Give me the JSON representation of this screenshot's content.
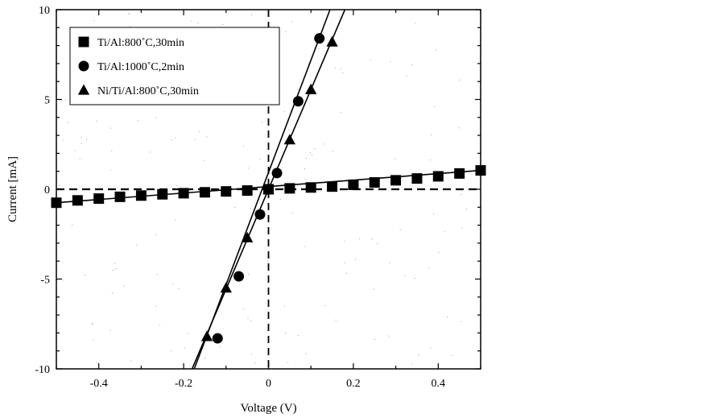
{
  "chart_data": {
    "type": "line",
    "title": "",
    "xlabel": "Voltage (V)",
    "ylabel": "Current [mA]",
    "xlim": [
      -0.5,
      0.5
    ],
    "ylim": [
      -10,
      10
    ],
    "x_ticks": [
      -0.4,
      -0.2,
      0,
      0.2,
      0.4
    ],
    "x_tick_labels": [
      "-0.4",
      "-0.2",
      "0",
      "0.2",
      "0.4"
    ],
    "y_ticks": [
      -10,
      -5,
      0,
      5,
      10
    ],
    "y_tick_labels": [
      "-10",
      "-5",
      "0",
      "5",
      "10"
    ],
    "grid": false,
    "legend_position": "top-left",
    "series": [
      {
        "name": "Ti/Al:800˚C,30min",
        "marker": "square",
        "x": [
          -0.5,
          -0.45,
          -0.4,
          -0.35,
          -0.3,
          -0.25,
          -0.2,
          -0.15,
          -0.1,
          -0.05,
          0,
          0.05,
          0.1,
          0.15,
          0.2,
          0.25,
          0.3,
          0.35,
          0.4,
          0.45,
          0.5
        ],
        "y": [
          -0.75,
          -0.62,
          -0.52,
          -0.42,
          -0.35,
          -0.28,
          -0.22,
          -0.17,
          -0.12,
          -0.07,
          0,
          0.05,
          0.1,
          0.15,
          0.25,
          0.38,
          0.5,
          0.6,
          0.72,
          0.88,
          1.05
        ]
      },
      {
        "name": "Ti/Al:1000˚C,2min",
        "marker": "circle",
        "x": [
          -0.12,
          -0.07,
          -0.02,
          0.02,
          0.07,
          0.12
        ],
        "y": [
          -8.3,
          -4.85,
          -1.4,
          0.9,
          4.9,
          8.4
        ]
      },
      {
        "name": "Ni/Ti/Al:800˚C,30min",
        "marker": "triangle",
        "x": [
          -0.145,
          -0.1,
          -0.05,
          0,
          0.05,
          0.1,
          0.15
        ],
        "y": [
          -8.2,
          -5.5,
          -2.7,
          0,
          2.75,
          5.55,
          8.2
        ]
      }
    ],
    "fit_lines": [
      {
        "series": "Ti/Al:800˚C,30min",
        "x": [
          -0.5,
          0.5
        ],
        "y": [
          -0.75,
          1.05
        ]
      },
      {
        "series": "Ti/Al:1000˚C,2min",
        "x": [
          -0.175,
          0.145
        ],
        "y": [
          -10,
          10
        ]
      },
      {
        "series": "Ni/Ti/Al:800˚C,30min",
        "x": [
          -0.18,
          0.18
        ],
        "y": [
          -10,
          10
        ]
      }
    ],
    "reference_lines": [
      {
        "orientation": "horizontal",
        "value": 0,
        "style": "dashed"
      },
      {
        "orientation": "vertical",
        "value": 0,
        "style": "dashed"
      }
    ]
  }
}
